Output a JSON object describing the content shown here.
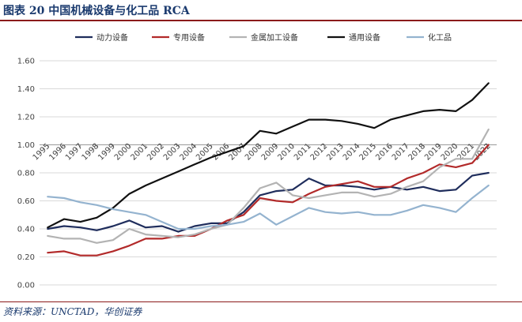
{
  "figure": {
    "title": "图表 20 中国机械设备与化工品 RCA",
    "source": "资料来源：UNCTAD，华创证券"
  },
  "chart_data": {
    "type": "line",
    "x": [
      "1995",
      "1996",
      "1997",
      "1998",
      "1999",
      "2000",
      "2001",
      "2002",
      "2003",
      "2004",
      "2005",
      "2006",
      "2007",
      "2008",
      "2009",
      "2010",
      "2011",
      "2012",
      "2013",
      "2014",
      "2015",
      "2016",
      "2017",
      "2018",
      "2019",
      "2020",
      "2021",
      "2022"
    ],
    "ylim": [
      0,
      1.6
    ],
    "yticks": [
      "0.00",
      "0.20",
      "0.40",
      "0.60",
      "0.80",
      "1.00",
      "1.20",
      "1.40",
      "1.60"
    ],
    "x_axis_crosses_at": 1.0,
    "grid": true,
    "legend_position": "top",
    "series": [
      {
        "name": "动力设备",
        "color": "#1f2d5c",
        "values": [
          0.4,
          0.42,
          0.41,
          0.39,
          0.42,
          0.46,
          0.41,
          0.42,
          0.38,
          0.42,
          0.44,
          0.44,
          0.52,
          0.64,
          0.67,
          0.68,
          0.76,
          0.71,
          0.71,
          0.7,
          0.68,
          0.7,
          0.68,
          0.7,
          0.67,
          0.68,
          0.78,
          0.8
        ]
      },
      {
        "name": "专用设备",
        "color": "#b22a2a",
        "values": [
          0.23,
          0.24,
          0.21,
          0.21,
          0.24,
          0.28,
          0.33,
          0.33,
          0.35,
          0.35,
          0.4,
          0.46,
          0.5,
          0.62,
          0.6,
          0.59,
          0.65,
          0.7,
          0.72,
          0.74,
          0.7,
          0.7,
          0.76,
          0.8,
          0.86,
          0.84,
          0.87,
          1.0
        ]
      },
      {
        "name": "金属加工设备",
        "color": "#b3b3b3",
        "values": [
          0.35,
          0.33,
          0.33,
          0.3,
          0.32,
          0.4,
          0.36,
          0.35,
          0.34,
          0.36,
          0.4,
          0.43,
          0.55,
          0.69,
          0.73,
          0.64,
          0.62,
          0.64,
          0.66,
          0.66,
          0.63,
          0.65,
          0.7,
          0.74,
          0.84,
          0.9,
          0.9,
          1.11
        ]
      },
      {
        "name": "通用设备",
        "color": "#111111",
        "values": [
          0.41,
          0.47,
          0.45,
          0.48,
          0.55,
          0.65,
          0.71,
          0.76,
          0.81,
          0.86,
          0.91,
          0.95,
          0.99,
          1.1,
          1.08,
          1.13,
          1.18,
          1.18,
          1.17,
          1.15,
          1.12,
          1.18,
          1.21,
          1.24,
          1.25,
          1.24,
          1.32,
          1.44
        ]
      },
      {
        "name": "化工品",
        "color": "#94b3cf",
        "values": [
          0.63,
          0.62,
          0.59,
          0.57,
          0.54,
          0.52,
          0.5,
          0.45,
          0.4,
          0.4,
          0.42,
          0.43,
          0.45,
          0.51,
          0.43,
          0.49,
          0.55,
          0.52,
          0.51,
          0.52,
          0.5,
          0.5,
          0.53,
          0.57,
          0.55,
          0.52,
          0.62,
          0.71
        ]
      }
    ]
  }
}
